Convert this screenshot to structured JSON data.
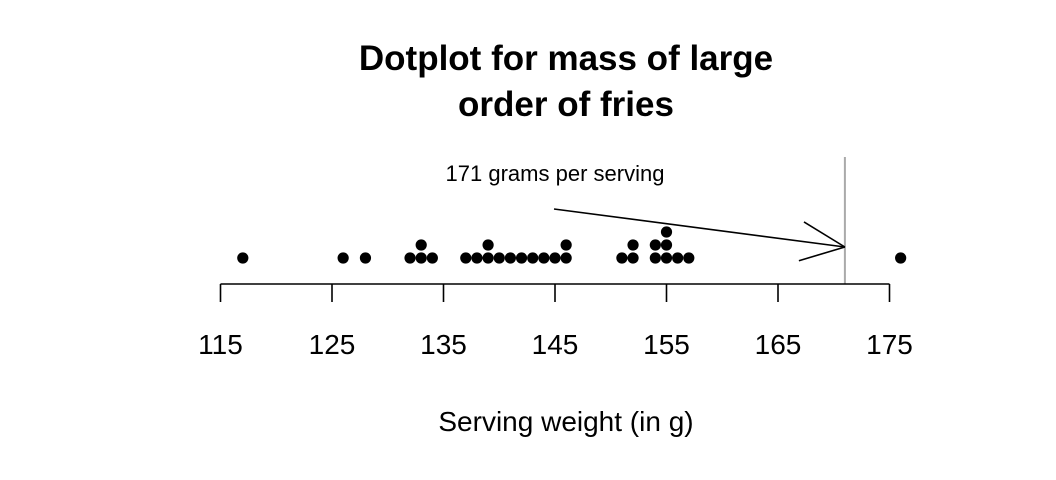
{
  "chart_data": {
    "type": "scatter",
    "subtype": "dotplot",
    "title_lines": [
      "Dotplot for mass of large",
      "order of fries"
    ],
    "xlabel": "Serving weight (in g)",
    "ylabel": "",
    "xlim": [
      115,
      175
    ],
    "x_ticks": [
      115,
      125,
      135,
      145,
      155,
      165,
      175
    ],
    "x_tick_labels": [
      "115",
      "125",
      "135",
      "145",
      "155",
      "165",
      "175"
    ],
    "grid": false,
    "values": [
      117,
      126,
      128,
      132,
      133,
      133,
      134,
      137,
      138,
      139,
      139,
      140,
      141,
      142,
      143,
      144,
      145,
      146,
      146,
      151,
      152,
      152,
      154,
      154,
      155,
      155,
      155,
      156,
      157,
      176
    ],
    "reference_line": {
      "x": 171,
      "color": "#aaaaaa"
    },
    "annotation": {
      "text": "171 grams per serving",
      "points_to_x": 171
    },
    "dot_color": "#000000"
  }
}
